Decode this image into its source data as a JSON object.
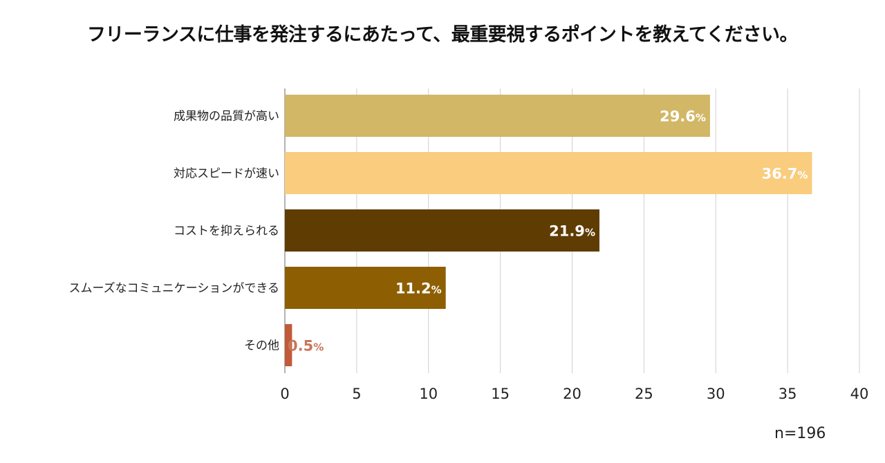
{
  "chart_data": {
    "type": "bar",
    "orientation": "horizontal",
    "title": "フリーランスに仕事を発注するにあたって、最重要視するポイントを教えてください。",
    "categories": [
      "成果物の品質が高い",
      "対応スピードが速い",
      "コストを抑えられる",
      "スムーズなコミュニケーションができる",
      "その他"
    ],
    "values": [
      29.6,
      36.7,
      21.9,
      11.2,
      0.5
    ],
    "value_labels": [
      "29.6",
      "36.7",
      "21.9",
      "11.2",
      "0.5"
    ],
    "value_suffix": "%",
    "colors": [
      "#d2b766",
      "#f9cc7e",
      "#5f3c02",
      "#8e5f02",
      "#c15a39"
    ],
    "label_colors": [
      "#ffffff",
      "#ffffff",
      "#ffffff",
      "#ffffff",
      "#c8765a"
    ],
    "xlim": [
      0,
      40
    ],
    "xticks": [
      "0",
      "5",
      "10",
      "15",
      "20",
      "25",
      "30",
      "35",
      "40"
    ],
    "grid": true,
    "note": "n=196"
  }
}
